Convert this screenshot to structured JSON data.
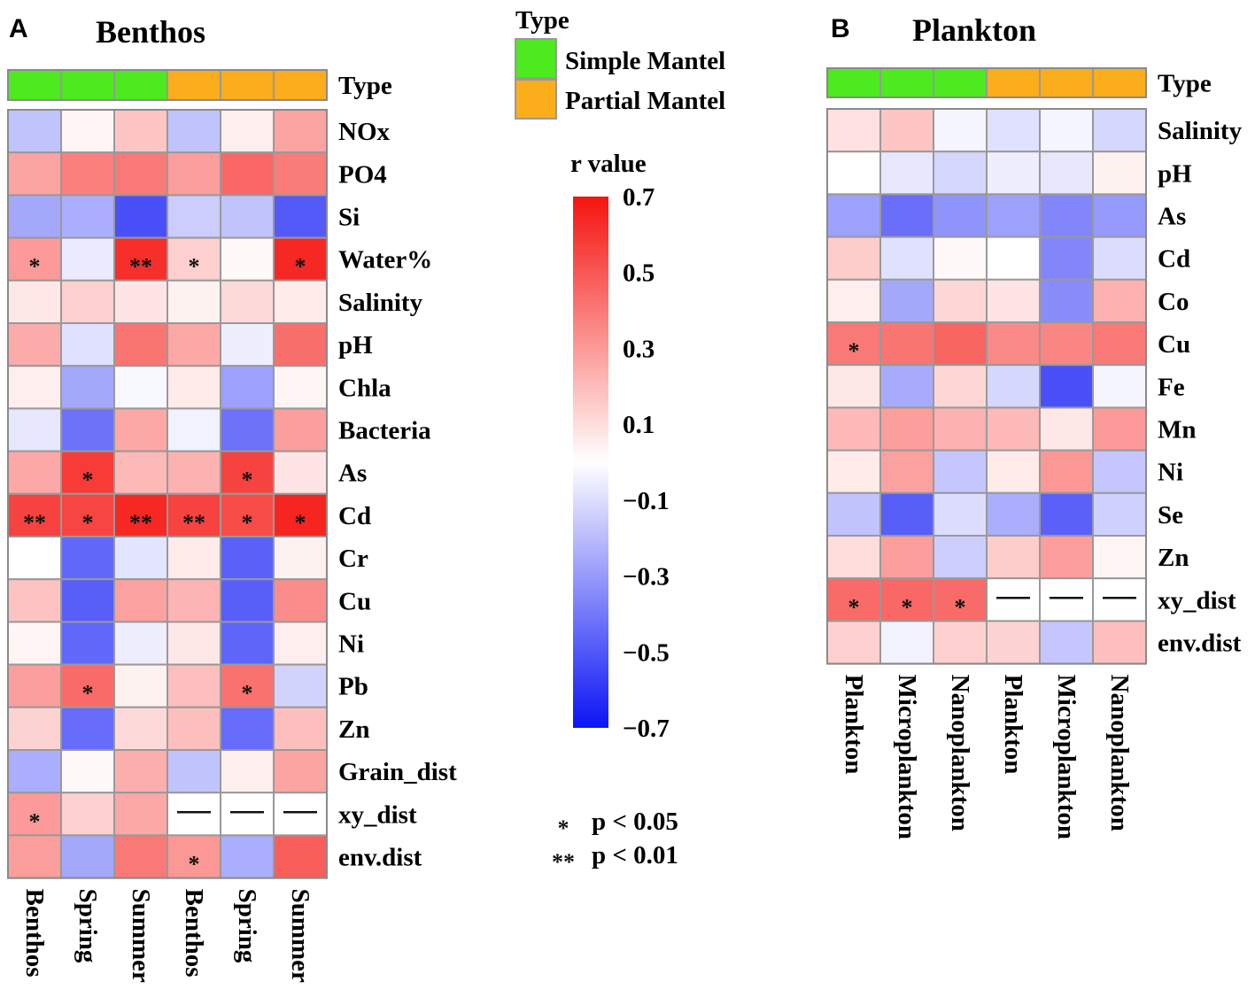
{
  "chart_data": [
    {
      "type": "heatmap",
      "panel": "A",
      "title": "Benthos",
      "type_row_label": "Type",
      "columns": [
        {
          "label": "Benthos",
          "type": "Simple Mantel"
        },
        {
          "label": "Spring",
          "type": "Simple Mantel"
        },
        {
          "label": "Summer",
          "type": "Simple Mantel"
        },
        {
          "label": "Benthos",
          "type": "Partial Mantel"
        },
        {
          "label": "Spring",
          "type": "Partial Mantel"
        },
        {
          "label": "Summer",
          "type": "Partial Mantel"
        }
      ],
      "rows": [
        "NOx",
        "PO4",
        "Si",
        "Water%",
        "Salinity",
        "pH",
        "Chla",
        "Bacteria",
        "As",
        "Cd",
        "Cr",
        "Cu",
        "Ni",
        "Pb",
        "Zn",
        "Grain_dist",
        "xy_dist",
        "env.dist"
      ],
      "values": [
        [
          -0.18,
          0.03,
          0.17,
          -0.18,
          0.05,
          0.27
        ],
        [
          0.27,
          0.38,
          0.4,
          0.29,
          0.45,
          0.39
        ],
        [
          -0.26,
          -0.24,
          -0.52,
          -0.15,
          -0.18,
          -0.49
        ],
        [
          0.3,
          -0.06,
          0.62,
          0.14,
          0.02,
          0.64
        ],
        [
          0.07,
          0.14,
          0.08,
          0.04,
          0.11,
          0.06
        ],
        [
          0.25,
          -0.09,
          0.41,
          0.26,
          -0.05,
          0.43
        ],
        [
          0.05,
          -0.26,
          -0.02,
          0.06,
          -0.28,
          0.03
        ],
        [
          -0.07,
          -0.42,
          0.26,
          -0.04,
          -0.42,
          0.29
        ],
        [
          0.26,
          0.58,
          0.21,
          0.23,
          0.56,
          0.08
        ],
        [
          0.56,
          0.55,
          0.64,
          0.56,
          0.53,
          0.65
        ],
        [
          0.0,
          -0.45,
          -0.08,
          0.06,
          -0.47,
          0.04
        ],
        [
          0.18,
          -0.48,
          0.28,
          0.22,
          -0.48,
          0.34
        ],
        [
          0.03,
          -0.45,
          -0.05,
          0.07,
          -0.46,
          0.05
        ],
        [
          0.29,
          0.44,
          0.04,
          0.19,
          0.42,
          -0.13
        ],
        [
          0.13,
          -0.44,
          0.11,
          0.19,
          -0.44,
          0.19
        ],
        [
          -0.24,
          0.02,
          0.24,
          -0.18,
          0.05,
          0.27
        ],
        [
          0.3,
          0.14,
          0.26,
          null,
          null,
          null
        ],
        [
          0.29,
          -0.26,
          0.4,
          0.31,
          -0.24,
          0.48
        ]
      ],
      "significance": [
        [
          "",
          "",
          "",
          "",
          "",
          ""
        ],
        [
          "",
          "",
          "",
          "",
          "",
          ""
        ],
        [
          "",
          "",
          "",
          "",
          "",
          ""
        ],
        [
          "*",
          "",
          "**",
          "*",
          "",
          "*"
        ],
        [
          "",
          "",
          "",
          "",
          "",
          ""
        ],
        [
          "",
          "",
          "",
          "",
          "",
          ""
        ],
        [
          "",
          "",
          "",
          "",
          "",
          ""
        ],
        [
          "",
          "",
          "",
          "",
          "",
          ""
        ],
        [
          "",
          "*",
          "",
          "",
          "*",
          ""
        ],
        [
          "**",
          "*",
          "**",
          "**",
          "*",
          "*"
        ],
        [
          "",
          "",
          "",
          "",
          "",
          ""
        ],
        [
          "",
          "",
          "",
          "",
          "",
          ""
        ],
        [
          "",
          "",
          "",
          "",
          "",
          ""
        ],
        [
          "",
          "*",
          "",
          "",
          "*",
          ""
        ],
        [
          "",
          "",
          "",
          "",
          "",
          ""
        ],
        [
          "",
          "",
          "",
          "",
          "",
          ""
        ],
        [
          "*",
          "",
          "",
          "",
          "",
          ""
        ],
        [
          "",
          "",
          "",
          "*",
          "",
          ""
        ]
      ]
    },
    {
      "type": "heatmap",
      "panel": "B",
      "title": "Plankton",
      "type_row_label": "Type",
      "columns": [
        {
          "label": "Plankton",
          "type": "Simple Mantel"
        },
        {
          "label": "Microplankton",
          "type": "Simple Mantel"
        },
        {
          "label": "Nanoplankton",
          "type": "Simple Mantel"
        },
        {
          "label": "Plankton",
          "type": "Partial Mantel"
        },
        {
          "label": "Microplankton",
          "type": "Partial Mantel"
        },
        {
          "label": "Nanoplankton",
          "type": "Partial Mantel"
        }
      ],
      "rows": [
        "Salinity",
        "pH",
        "As",
        "Cd",
        "Co",
        "Cu",
        "Fe",
        "Mn",
        "Ni",
        "Se",
        "Zn",
        "xy_dist",
        "env.dist"
      ],
      "values": [
        [
          0.09,
          0.17,
          -0.03,
          -0.09,
          -0.03,
          -0.12
        ],
        [
          0.0,
          -0.07,
          -0.12,
          -0.05,
          -0.07,
          0.04
        ],
        [
          -0.28,
          -0.43,
          -0.32,
          -0.28,
          -0.36,
          -0.3
        ],
        [
          0.15,
          -0.09,
          0.02,
          0.0,
          -0.36,
          -0.1
        ],
        [
          0.05,
          -0.26,
          0.12,
          0.08,
          -0.34,
          0.23
        ],
        [
          0.4,
          0.41,
          0.46,
          0.35,
          0.36,
          0.4
        ],
        [
          0.07,
          -0.25,
          0.12,
          -0.12,
          -0.52,
          -0.03
        ],
        [
          0.21,
          0.29,
          0.23,
          0.21,
          0.07,
          0.3
        ],
        [
          0.06,
          0.28,
          -0.17,
          0.06,
          0.31,
          -0.17
        ],
        [
          -0.18,
          -0.48,
          -0.1,
          -0.24,
          -0.47,
          -0.14
        ],
        [
          0.1,
          0.29,
          -0.15,
          0.15,
          0.29,
          0.03
        ],
        [
          0.44,
          0.45,
          0.44,
          null,
          null,
          null
        ],
        [
          0.14,
          -0.04,
          0.14,
          0.13,
          -0.17,
          0.19
        ]
      ],
      "significance": [
        [
          "",
          "",
          "",
          "",
          "",
          ""
        ],
        [
          "",
          "",
          "",
          "",
          "",
          ""
        ],
        [
          "",
          "",
          "",
          "",
          "",
          ""
        ],
        [
          "",
          "",
          "",
          "",
          "",
          ""
        ],
        [
          "",
          "",
          "",
          "",
          "",
          ""
        ],
        [
          "*",
          "",
          "",
          "",
          "",
          ""
        ],
        [
          "",
          "",
          "",
          "",
          "",
          ""
        ],
        [
          "",
          "",
          "",
          "",
          "",
          ""
        ],
        [
          "",
          "",
          "",
          "",
          "",
          ""
        ],
        [
          "",
          "",
          "",
          "",
          "",
          ""
        ],
        [
          "",
          "",
          "",
          "",
          "",
          ""
        ],
        [
          "*",
          "*",
          "*",
          "",
          "",
          ""
        ],
        [
          "",
          "",
          "",
          "",
          "",
          ""
        ]
      ]
    }
  ],
  "legend": {
    "type_title": "Type",
    "types": [
      {
        "label": "Simple Mantel",
        "color": "#4cea1f"
      },
      {
        "label": "Partial Mantel",
        "color": "#fbad1b"
      }
    ],
    "colorbar_title": "r value",
    "colorbar_ticks": [
      "0.7",
      "0.5",
      "0.3",
      "0.1",
      "−0.1",
      "−0.3",
      "−0.5",
      "−0.7"
    ],
    "colorbar_range": [
      -0.7,
      0.7
    ],
    "colors": {
      "low": "#0b14f5",
      "mid": "#ffffff",
      "high": "#f5140f"
    },
    "significance": [
      {
        "symbol": "*",
        "label": "p < 0.05"
      },
      {
        "symbol": "**",
        "label": "p < 0.01"
      }
    ],
    "missing_symbol": "—"
  }
}
